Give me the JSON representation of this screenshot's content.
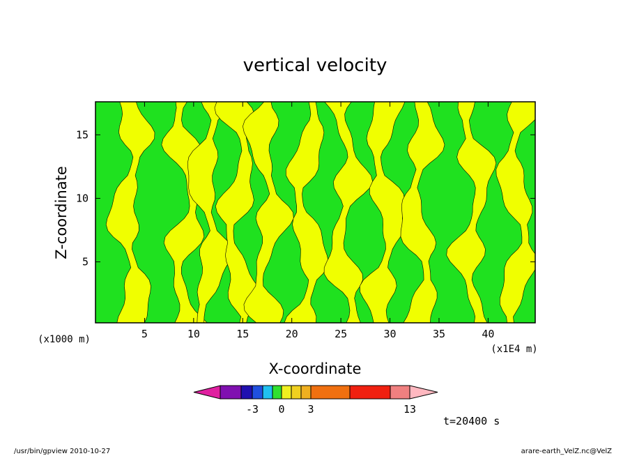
{
  "chart_data": {
    "type": "heatmap",
    "title": "vertical velocity",
    "xlabel": "X-coordinate",
    "ylabel": "Z-coordinate",
    "x_scale_note": "(x1E4 m)",
    "y_scale_note": "(x1000 m)",
    "xlim": [
      0,
      44.8
    ],
    "ylim": [
      0.2,
      17.6
    ],
    "x_ticks": [
      5,
      10,
      15,
      20,
      25,
      30,
      35,
      40
    ],
    "y_ticks": [
      5,
      10,
      15
    ],
    "time_label": "t=20400 s",
    "colorbar": {
      "levels": [
        -3,
        0,
        3,
        13
      ],
      "tick_labels": [
        "-3",
        "0",
        "3",
        "13"
      ],
      "colors": [
        "#e020a0",
        "#8010b0",
        "#2010b0",
        "#2050e0",
        "#20c0f0",
        "#30e030",
        "#f0f020",
        "#f0d020",
        "#f0b020",
        "#f07010",
        "#f02010",
        "#f08080",
        "#ffb8c0"
      ]
    },
    "field_colors": {
      "negative": "#1fe11f",
      "positive": "#f0ff00"
    },
    "upward_columns_x": [
      3.5,
      9.2,
      11.5,
      14.5,
      17.5,
      21.5,
      25.5,
      29.5,
      33,
      38.5,
      43
    ]
  },
  "footer": {
    "left": "/usr/bin/gpview   2010-10-27",
    "right": "arare-earth_VelZ.nc@VelZ"
  }
}
